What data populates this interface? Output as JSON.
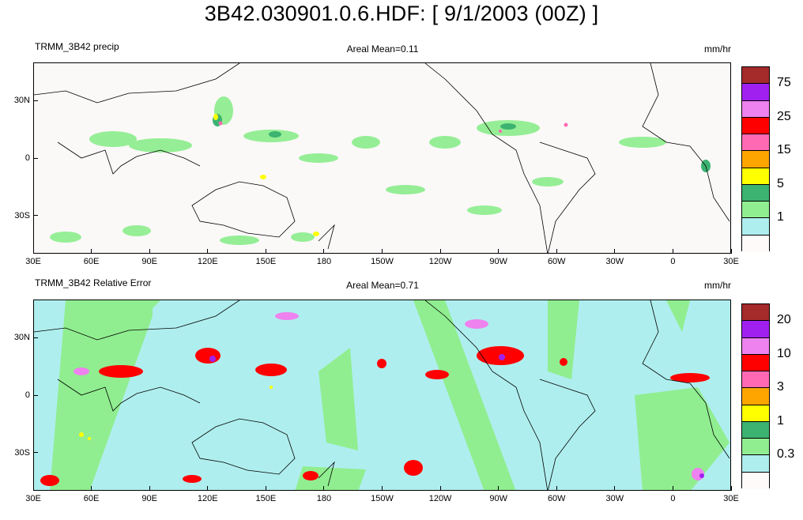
{
  "page_title": "3B42.030901.0.6.HDF: [ 9/1/2003 (00Z) ]",
  "x_tick_labels": [
    "30E",
    "60E",
    "90E",
    "120E",
    "150E",
    "180",
    "150W",
    "120W",
    "90W",
    "60W",
    "30W",
    "0",
    "30E"
  ],
  "y_tick_labels": [
    "30N",
    "0",
    "30S"
  ],
  "x_axis_longitudes": [
    30,
    60,
    90,
    120,
    150,
    180,
    210,
    240,
    270,
    300,
    330,
    360,
    390
  ],
  "y_axis_latitudes": [
    30,
    0,
    -30
  ],
  "lat_range": [
    -50,
    50
  ],
  "lon_range": [
    30,
    390
  ],
  "panels": [
    {
      "id": "precip",
      "left_label": "TRMM_3B42 precip",
      "center_label": "Areal Mean=0.11",
      "units": "mm/hr",
      "background_color": "#fbf8f8",
      "colorbar": {
        "colors": [
          "#a52a2a",
          "#a020f0",
          "#ee82ee",
          "#ff0000",
          "#ff69b4",
          "#ffa500",
          "#ffff00",
          "#3cb371",
          "#90ee90",
          "#afeeee",
          "#fffafa"
        ],
        "labels": [
          "75",
          "25",
          "15",
          "5",
          "1"
        ]
      }
    },
    {
      "id": "relerr",
      "left_label": "TRMM_3B42 Relative Error",
      "center_label": "Areal Mean=0.71",
      "units": "mm/hr",
      "background_color": "#afeeee",
      "colorbar": {
        "colors": [
          "#a52a2a",
          "#a020f0",
          "#ee82ee",
          "#ff0000",
          "#ff69b4",
          "#ffa500",
          "#ffff00",
          "#3cb371",
          "#90ee90",
          "#afeeee",
          "#fffafa"
        ],
        "labels": [
          "20",
          "10",
          "3",
          "1",
          "0.3"
        ]
      }
    }
  ]
}
